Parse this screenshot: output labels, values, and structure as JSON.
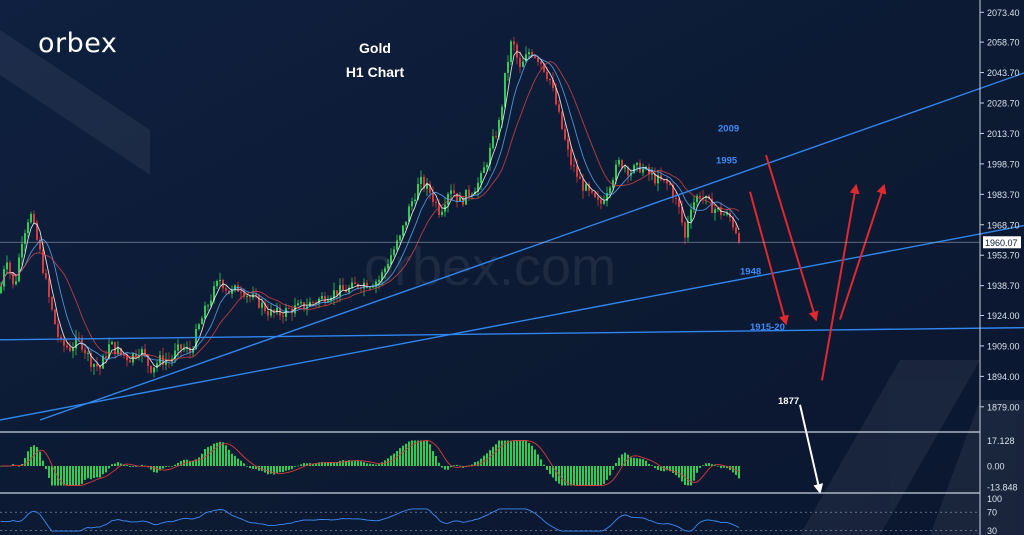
{
  "brand": {
    "logo_text": "orbex"
  },
  "chart_data": {
    "type": "candlestick",
    "title": "Gold",
    "subtitle": "H1 Chart",
    "watermark": "orbex.com",
    "y_ticks": [
      "2073.40",
      "2058.70",
      "2043.70",
      "2028.70",
      "2013.70",
      "1998.70",
      "1983.70",
      "1968.70",
      "1953.70",
      "1938.70",
      "1924.00",
      "1909.00",
      "1894.00",
      "1879.00"
    ],
    "y_tick_values": [
      2073.4,
      2058.7,
      2043.7,
      2028.7,
      2013.7,
      1998.7,
      1983.7,
      1968.7,
      1953.7,
      1938.7,
      1924.0,
      1909.0,
      1894.0,
      1879.0
    ],
    "ylim": [
      1872.5,
      2076.5
    ],
    "current_price": "1960.07",
    "current_price_value": 1960.07,
    "colors": {
      "background": "#0c1a33",
      "up": "#2ecc55",
      "down": "#d63b3b",
      "trendline": "#2f86ef",
      "arrow_red": "#e0282d",
      "arrow_white": "#ffffff",
      "annotation": "#3d8af7"
    },
    "path_keypoints": [
      [
        0,
        1935
      ],
      [
        6,
        1955
      ],
      [
        14,
        1936
      ],
      [
        22,
        1962
      ],
      [
        30,
        1975
      ],
      [
        40,
        1955
      ],
      [
        50,
        1930
      ],
      [
        60,
        1910
      ],
      [
        70,
        1908
      ],
      [
        80,
        1912
      ],
      [
        90,
        1902
      ],
      [
        100,
        1898
      ],
      [
        110,
        1910
      ],
      [
        120,
        1905
      ],
      [
        130,
        1903
      ],
      [
        140,
        1908
      ],
      [
        150,
        1898
      ],
      [
        160,
        1902
      ],
      [
        170,
        1902
      ],
      [
        180,
        1908
      ],
      [
        190,
        1906
      ],
      [
        200,
        1920
      ],
      [
        210,
        1932
      ],
      [
        220,
        1942
      ],
      [
        230,
        1935
      ],
      [
        240,
        1938
      ],
      [
        250,
        1933
      ],
      [
        260,
        1930
      ],
      [
        270,
        1925
      ],
      [
        280,
        1925
      ],
      [
        290,
        1927
      ],
      [
        300,
        1928
      ],
      [
        310,
        1930
      ],
      [
        320,
        1932
      ],
      [
        330,
        1935
      ],
      [
        340,
        1936
      ],
      [
        350,
        1937
      ],
      [
        360,
        1940
      ],
      [
        370,
        1940
      ],
      [
        380,
        1942
      ],
      [
        390,
        1953
      ],
      [
        400,
        1962
      ],
      [
        410,
        1978
      ],
      [
        420,
        1990
      ],
      [
        430,
        1985
      ],
      [
        440,
        1975
      ],
      [
        450,
        1988
      ],
      [
        460,
        1980
      ],
      [
        470,
        1985
      ],
      [
        480,
        1990
      ],
      [
        490,
        2005
      ],
      [
        500,
        2020
      ],
      [
        506,
        2045
      ],
      [
        512,
        2060
      ],
      [
        520,
        2045
      ],
      [
        530,
        2055
      ],
      [
        540,
        2050
      ],
      [
        550,
        2040
      ],
      [
        560,
        2020
      ],
      [
        570,
        2000
      ],
      [
        580,
        1990
      ],
      [
        590,
        1983
      ],
      [
        600,
        1978
      ],
      [
        610,
        1990
      ],
      [
        620,
        2000
      ],
      [
        630,
        1995
      ],
      [
        640,
        1997
      ],
      [
        650,
        1993
      ],
      [
        660,
        1990
      ],
      [
        670,
        1988
      ],
      [
        680,
        1975
      ],
      [
        685,
        1962
      ],
      [
        690,
        1978
      ],
      [
        700,
        1984
      ],
      [
        710,
        1978
      ],
      [
        720,
        1975
      ],
      [
        730,
        1972
      ],
      [
        740,
        1962
      ]
    ],
    "trendlines": [
      {
        "from": [
          40,
          1872.5
        ],
        "to": [
          1024,
          2043.5
        ]
      },
      {
        "from": [
          0,
          1872.5
        ],
        "to": [
          1024,
          1968.3
        ]
      },
      {
        "from": [
          0,
          1912.0
        ],
        "to": [
          1024,
          1918.0
        ]
      }
    ],
    "annotations": [
      {
        "label": "2009",
        "x": 718,
        "price": 2014.7,
        "color": "#3d8af7"
      },
      {
        "label": "1995",
        "x": 716,
        "price": 1998.8,
        "color": "#3d8af7"
      },
      {
        "label": "1948",
        "x": 740,
        "price": 1944.3,
        "color": "#3d8af7"
      },
      {
        "label": "1915-20",
        "x": 750,
        "price": 1916.8,
        "color": "#3d8af7"
      },
      {
        "label": "1877",
        "x": 778,
        "price": 1880.5,
        "color": "#ffffff"
      }
    ],
    "projection_arrows": [
      {
        "from": [
          750,
          1985
        ],
        "to": [
          786,
          1920
        ],
        "color": "#e0282d"
      },
      {
        "from": [
          766,
          2003
        ],
        "to": [
          816,
          1922
        ],
        "color": "#e0282d"
      },
      {
        "from": [
          822,
          1892
        ],
        "to": [
          856,
          1988
        ],
        "color": "#e0282d"
      },
      {
        "from": [
          840,
          1922
        ],
        "to": [
          884,
          1988
        ],
        "color": "#e0282d"
      },
      {
        "from": [
          800,
          1880
        ],
        "to": [
          820,
          1837
        ],
        "color": "#ffffff"
      }
    ],
    "macd": {
      "ticks": [
        "17.128",
        "0.00",
        "-13.848"
      ],
      "tick_values": [
        17.128,
        0,
        -13.848
      ],
      "ylim": [
        -16,
        20
      ]
    },
    "rsi": {
      "ticks": [
        "100",
        "70",
        "30"
      ],
      "tick_values": [
        100,
        70,
        30
      ],
      "ylim": [
        25,
        105
      ]
    }
  }
}
